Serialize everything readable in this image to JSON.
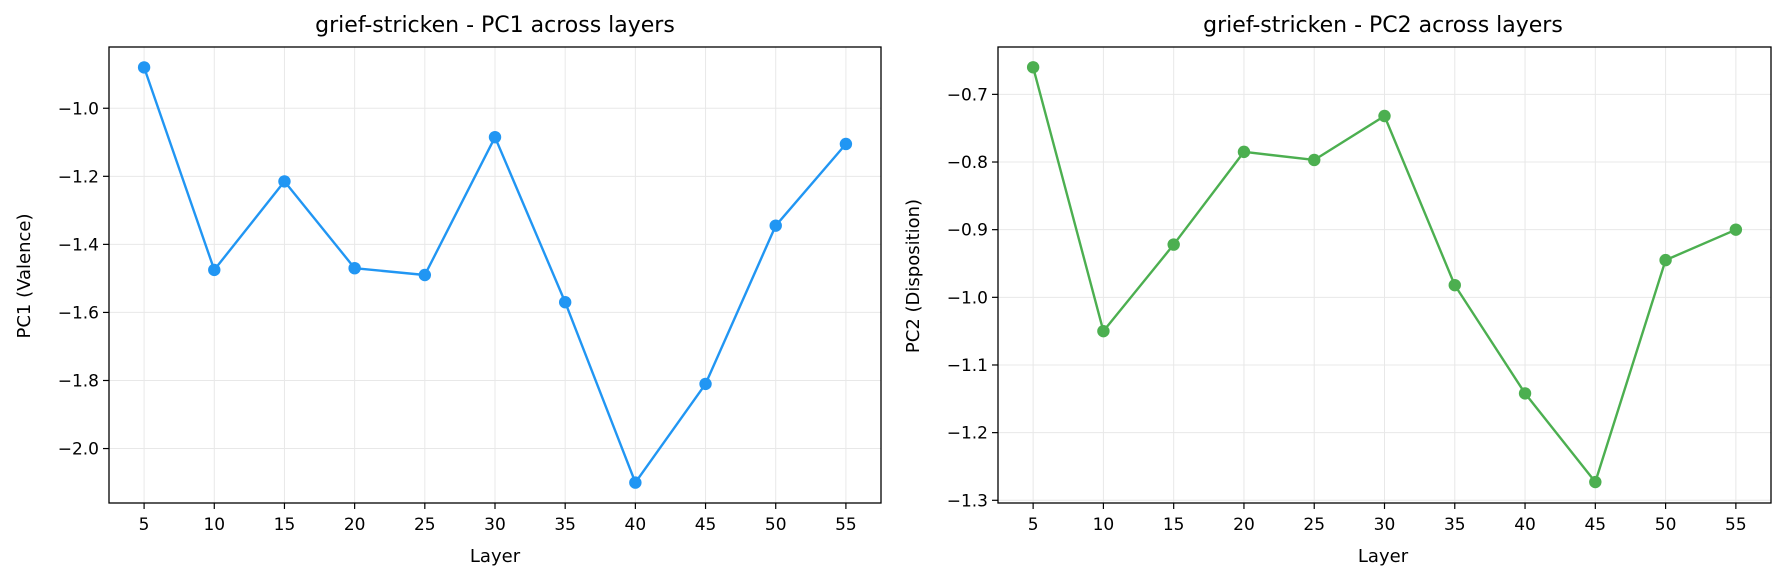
{
  "chart_data": [
    {
      "type": "line",
      "title": "grief-stricken - PC1 across layers",
      "xlabel": "Layer",
      "ylabel": "PC1 (Valence)",
      "x": [
        5,
        10,
        15,
        20,
        25,
        30,
        35,
        40,
        45,
        50,
        55
      ],
      "series": [
        {
          "values": [
            -0.88,
            -1.475,
            -1.215,
            -1.47,
            -1.49,
            -1.085,
            -1.57,
            -2.1,
            -1.81,
            -1.345,
            -1.105
          ]
        }
      ],
      "xticks": [
        "5",
        "10",
        "15",
        "20",
        "25",
        "30",
        "35",
        "40",
        "45",
        "50",
        "55"
      ],
      "yticks": [
        -2.0,
        -1.8,
        -1.6,
        -1.4,
        -1.2,
        -1.0
      ],
      "ytick_labels": [
        "−2.0",
        "−1.8",
        "−1.6",
        "−1.4",
        "−1.2",
        "−1.0"
      ],
      "ylim": [
        -2.16,
        -0.82
      ],
      "xlim": [
        2.5,
        57.5
      ],
      "grid": true,
      "color": "#2196F3"
    },
    {
      "type": "line",
      "title": "grief-stricken - PC2 across layers",
      "xlabel": "Layer",
      "ylabel": "PC2 (Disposition)",
      "x": [
        5,
        10,
        15,
        20,
        25,
        30,
        35,
        40,
        45,
        50,
        55
      ],
      "series": [
        {
          "values": [
            -0.66,
            -1.05,
            -0.922,
            -0.785,
            -0.797,
            -0.732,
            -0.982,
            -1.142,
            -1.273,
            -0.945,
            -0.9
          ]
        }
      ],
      "xticks": [
        "5",
        "10",
        "15",
        "20",
        "25",
        "30",
        "35",
        "40",
        "45",
        "50",
        "55"
      ],
      "yticks": [
        -1.3,
        -1.2,
        -1.1,
        -1.0,
        -0.9,
        -0.8,
        -0.7
      ],
      "ytick_labels": [
        "−1.3",
        "−1.2",
        "−1.1",
        "−1.0",
        "−0.9",
        "−0.8",
        "−0.7"
      ],
      "ylim": [
        -1.304,
        -0.63
      ],
      "xlim": [
        2.5,
        57.5
      ],
      "grid": true,
      "color": "#4CAF50"
    }
  ]
}
